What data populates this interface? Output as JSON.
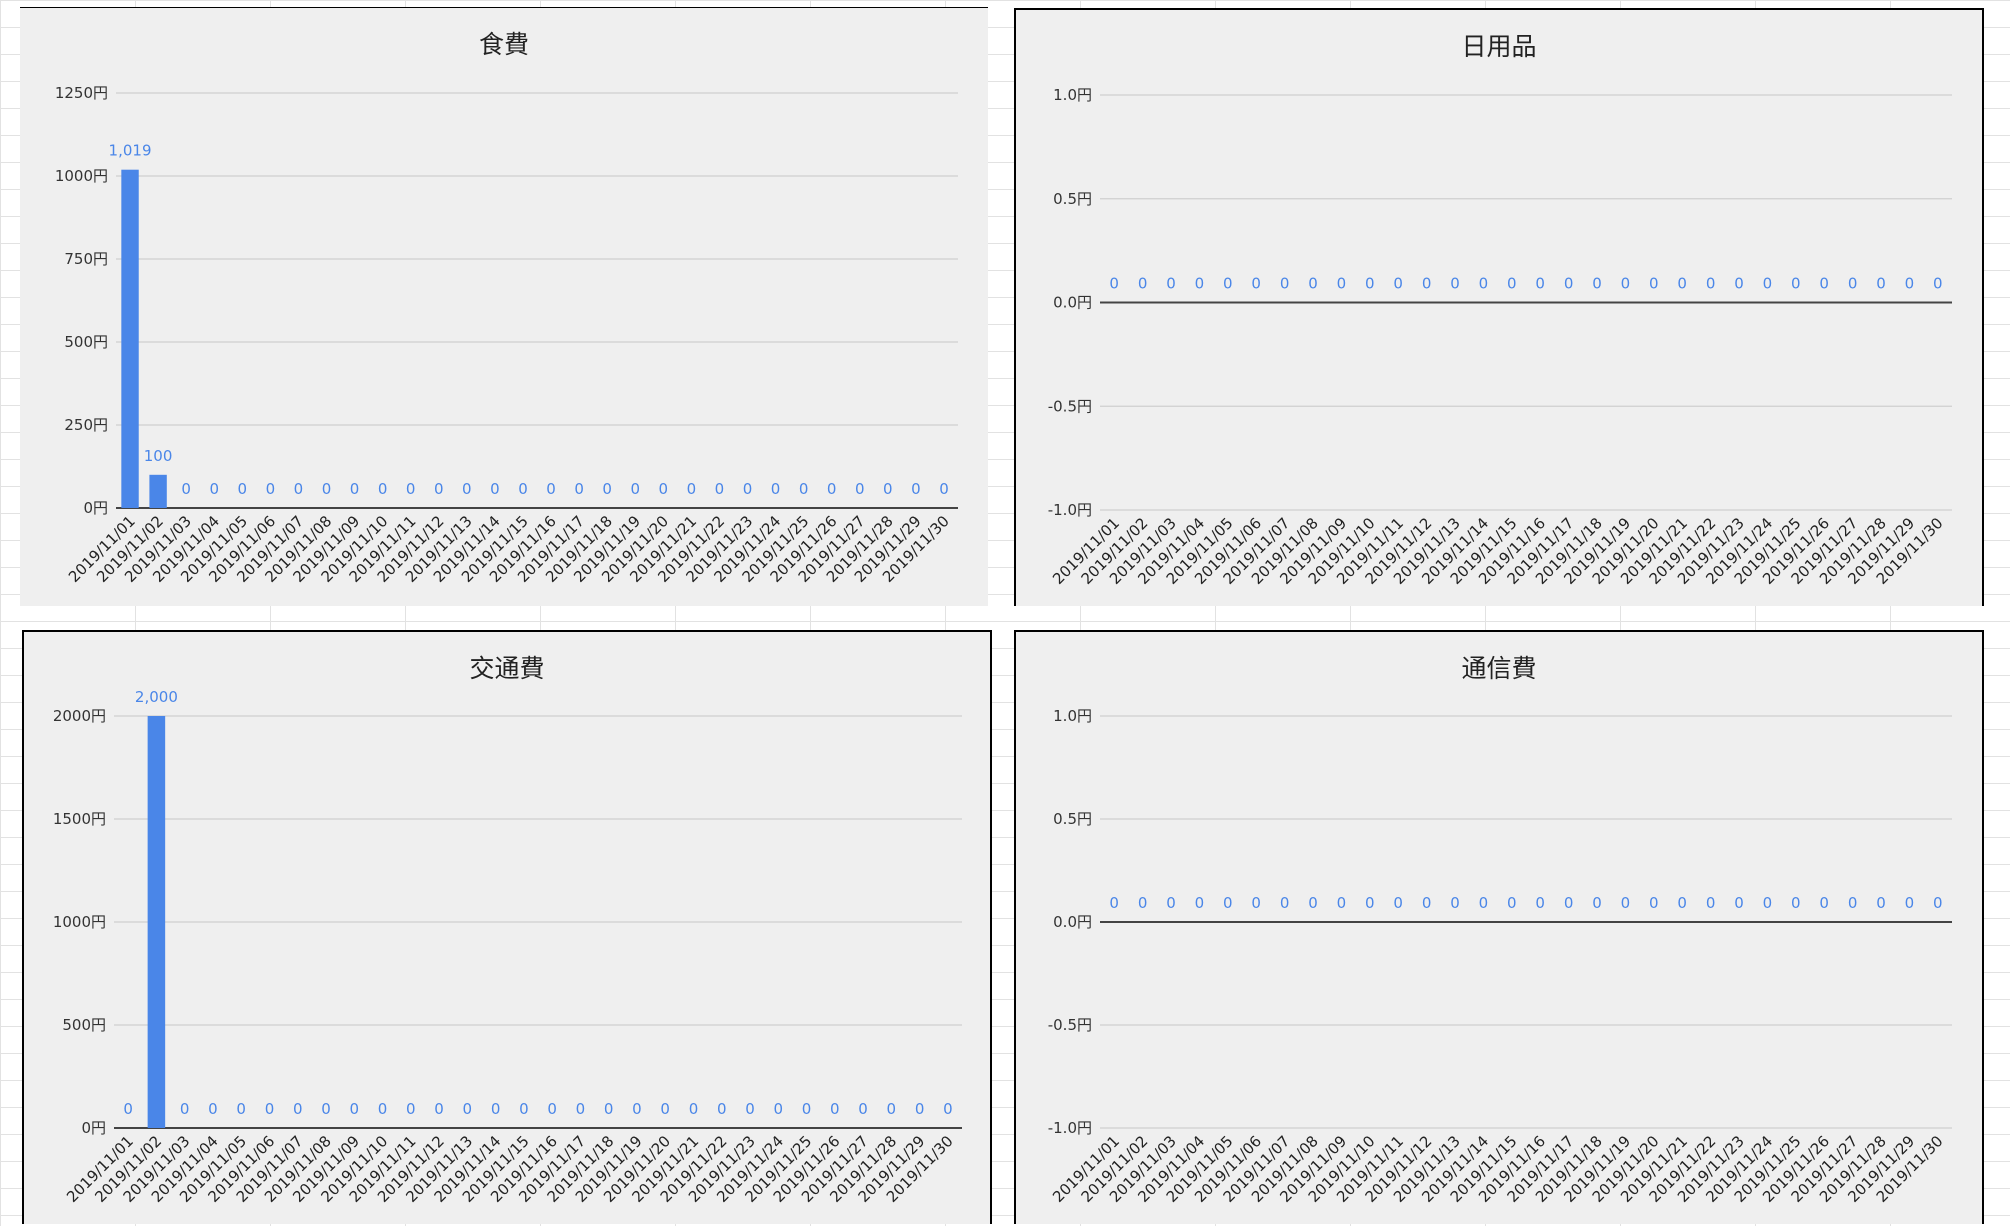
{
  "app": {
    "background": "spreadsheet"
  },
  "colors": {
    "bar": "#4a86e8",
    "label": "#4a86e8",
    "grid": "#cfcfcf",
    "axis": "#444444",
    "panel": "#efefef"
  },
  "chart_data": [
    {
      "id": "food",
      "type": "bar",
      "title": "食費",
      "unit": "円",
      "categories": [
        "2019/11/01",
        "2019/11/02",
        "2019/11/03",
        "2019/11/04",
        "2019/11/05",
        "2019/11/06",
        "2019/11/07",
        "2019/11/08",
        "2019/11/09",
        "2019/11/10",
        "2019/11/11",
        "2019/11/12",
        "2019/11/13",
        "2019/11/14",
        "2019/11/15",
        "2019/11/16",
        "2019/11/17",
        "2019/11/18",
        "2019/11/19",
        "2019/11/20",
        "2019/11/21",
        "2019/11/22",
        "2019/11/23",
        "2019/11/24",
        "2019/11/25",
        "2019/11/26",
        "2019/11/27",
        "2019/11/28",
        "2019/11/29",
        "2019/11/30"
      ],
      "values": [
        1019,
        100,
        0,
        0,
        0,
        0,
        0,
        0,
        0,
        0,
        0,
        0,
        0,
        0,
        0,
        0,
        0,
        0,
        0,
        0,
        0,
        0,
        0,
        0,
        0,
        0,
        0,
        0,
        0,
        0
      ],
      "data_labels": [
        "1,019",
        "100",
        "0",
        "0",
        "0",
        "0",
        "0",
        "0",
        "0",
        "0",
        "0",
        "0",
        "0",
        "0",
        "0",
        "0",
        "0",
        "0",
        "0",
        "0",
        "0",
        "0",
        "0",
        "0",
        "0",
        "0",
        "0",
        "0",
        "0",
        "0"
      ],
      "ylim": [
        0,
        1250
      ],
      "yticks": [
        0,
        250,
        500,
        750,
        1000,
        1250
      ],
      "ytick_labels": [
        "0円",
        "250円",
        "500円",
        "750円",
        "1000円",
        "1250円"
      ],
      "grid": true
    },
    {
      "id": "daily",
      "type": "bar",
      "title": "日用品",
      "unit": "円",
      "categories": [
        "2019/11/01",
        "2019/11/02",
        "2019/11/03",
        "2019/11/04",
        "2019/11/05",
        "2019/11/06",
        "2019/11/07",
        "2019/11/08",
        "2019/11/09",
        "2019/11/10",
        "2019/11/11",
        "2019/11/12",
        "2019/11/13",
        "2019/11/14",
        "2019/11/15",
        "2019/11/16",
        "2019/11/17",
        "2019/11/18",
        "2019/11/19",
        "2019/11/20",
        "2019/11/21",
        "2019/11/22",
        "2019/11/23",
        "2019/11/24",
        "2019/11/25",
        "2019/11/26",
        "2019/11/27",
        "2019/11/28",
        "2019/11/29",
        "2019/11/30"
      ],
      "values": [
        0,
        0,
        0,
        0,
        0,
        0,
        0,
        0,
        0,
        0,
        0,
        0,
        0,
        0,
        0,
        0,
        0,
        0,
        0,
        0,
        0,
        0,
        0,
        0,
        0,
        0,
        0,
        0,
        0,
        0
      ],
      "data_labels": [
        "0",
        "0",
        "0",
        "0",
        "0",
        "0",
        "0",
        "0",
        "0",
        "0",
        "0",
        "0",
        "0",
        "0",
        "0",
        "0",
        "0",
        "0",
        "0",
        "0",
        "0",
        "0",
        "0",
        "0",
        "0",
        "0",
        "0",
        "0",
        "0",
        "0"
      ],
      "ylim": [
        -1.0,
        1.0
      ],
      "yticks": [
        -1.0,
        -0.5,
        0.0,
        0.5,
        1.0
      ],
      "ytick_labels": [
        "-1.0円",
        "-0.5円",
        "0.0円",
        "0.5円",
        "1.0円"
      ],
      "grid": true
    },
    {
      "id": "transport",
      "type": "bar",
      "title": "交通費",
      "unit": "円",
      "categories": [
        "2019/11/01",
        "2019/11/02",
        "2019/11/03",
        "2019/11/04",
        "2019/11/05",
        "2019/11/06",
        "2019/11/07",
        "2019/11/08",
        "2019/11/09",
        "2019/11/10",
        "2019/11/11",
        "2019/11/12",
        "2019/11/13",
        "2019/11/14",
        "2019/11/15",
        "2019/11/16",
        "2019/11/17",
        "2019/11/18",
        "2019/11/19",
        "2019/11/20",
        "2019/11/21",
        "2019/11/22",
        "2019/11/23",
        "2019/11/24",
        "2019/11/25",
        "2019/11/26",
        "2019/11/27",
        "2019/11/28",
        "2019/11/29",
        "2019/11/30"
      ],
      "values": [
        0,
        2000,
        0,
        0,
        0,
        0,
        0,
        0,
        0,
        0,
        0,
        0,
        0,
        0,
        0,
        0,
        0,
        0,
        0,
        0,
        0,
        0,
        0,
        0,
        0,
        0,
        0,
        0,
        0,
        0
      ],
      "data_labels": [
        "0",
        "2,000",
        "0",
        "0",
        "0",
        "0",
        "0",
        "0",
        "0",
        "0",
        "0",
        "0",
        "0",
        "0",
        "0",
        "0",
        "0",
        "0",
        "0",
        "0",
        "0",
        "0",
        "0",
        "0",
        "0",
        "0",
        "0",
        "0",
        "0",
        "0"
      ],
      "ylim": [
        0,
        2000
      ],
      "yticks": [
        0,
        500,
        1000,
        1500,
        2000
      ],
      "ytick_labels": [
        "0円",
        "500円",
        "1000円",
        "1500円",
        "2000円"
      ],
      "grid": true
    },
    {
      "id": "telecom",
      "type": "bar",
      "title": "通信費",
      "unit": "円",
      "categories": [
        "2019/11/01",
        "2019/11/02",
        "2019/11/03",
        "2019/11/04",
        "2019/11/05",
        "2019/11/06",
        "2019/11/07",
        "2019/11/08",
        "2019/11/09",
        "2019/11/10",
        "2019/11/11",
        "2019/11/12",
        "2019/11/13",
        "2019/11/14",
        "2019/11/15",
        "2019/11/16",
        "2019/11/17",
        "2019/11/18",
        "2019/11/19",
        "2019/11/20",
        "2019/11/21",
        "2019/11/22",
        "2019/11/23",
        "2019/11/24",
        "2019/11/25",
        "2019/11/26",
        "2019/11/27",
        "2019/11/28",
        "2019/11/29",
        "2019/11/30"
      ],
      "values": [
        0,
        0,
        0,
        0,
        0,
        0,
        0,
        0,
        0,
        0,
        0,
        0,
        0,
        0,
        0,
        0,
        0,
        0,
        0,
        0,
        0,
        0,
        0,
        0,
        0,
        0,
        0,
        0,
        0,
        0
      ],
      "data_labels": [
        "0",
        "0",
        "0",
        "0",
        "0",
        "0",
        "0",
        "0",
        "0",
        "0",
        "0",
        "0",
        "0",
        "0",
        "0",
        "0",
        "0",
        "0",
        "0",
        "0",
        "0",
        "0",
        "0",
        "0",
        "0",
        "0",
        "0",
        "0",
        "0",
        "0"
      ],
      "ylim": [
        -1.0,
        1.0
      ],
      "yticks": [
        -1.0,
        -0.5,
        0.0,
        0.5,
        1.0
      ],
      "ytick_labels": [
        "-1.0円",
        "-0.5円",
        "0.0円",
        "0.5円",
        "1.0円"
      ],
      "grid": true
    }
  ]
}
